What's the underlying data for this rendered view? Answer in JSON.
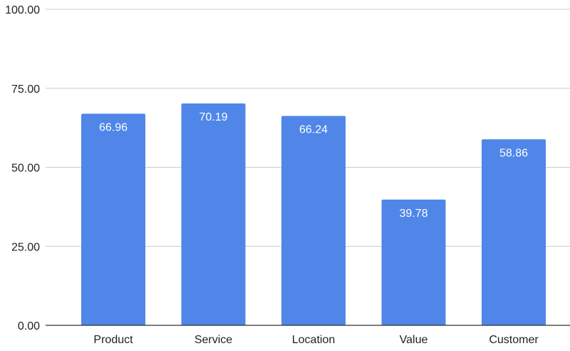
{
  "colors": {
    "bar": "#4f86e8",
    "grid": "#cccccc",
    "axis": "#333333",
    "text": "#222222"
  },
  "chart_data": {
    "type": "bar",
    "title": "",
    "xlabel": "",
    "ylabel": "",
    "categories": [
      "Product",
      "Service",
      "Location",
      "Value",
      "Customer"
    ],
    "values": [
      66.96,
      70.19,
      66.24,
      39.78,
      58.86
    ],
    "value_labels": [
      "66.96",
      "70.19",
      "66.24",
      "39.78",
      "58.86"
    ],
    "ylim": [
      0,
      100
    ],
    "yticks": [
      0,
      25,
      50,
      75,
      100
    ],
    "ytick_labels": [
      "0.00",
      "25.00",
      "50.00",
      "75.00",
      "100.00"
    ],
    "grid": true,
    "legend": "none"
  }
}
